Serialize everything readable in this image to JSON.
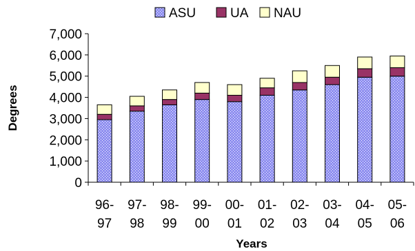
{
  "chart_data": {
    "type": "bar",
    "stacked": true,
    "categories": [
      [
        "96-",
        "97"
      ],
      [
        "97-",
        "98"
      ],
      [
        "98-",
        "99"
      ],
      [
        "99-",
        "00"
      ],
      [
        "00-",
        "01"
      ],
      [
        "01-",
        "02"
      ],
      [
        "02-",
        "03"
      ],
      [
        "03-",
        "04"
      ],
      [
        "04-",
        "05"
      ],
      [
        "05-",
        "06"
      ]
    ],
    "series": [
      {
        "name": "ASU",
        "values": [
          2950,
          3350,
          3650,
          3900,
          3800,
          4100,
          4350,
          4600,
          4950,
          5000
        ]
      },
      {
        "name": "UA",
        "values": [
          250,
          250,
          250,
          300,
          300,
          350,
          350,
          350,
          400,
          400
        ]
      },
      {
        "name": "NAU",
        "values": [
          450,
          450,
          450,
          500,
          500,
          450,
          550,
          550,
          550,
          550
        ]
      }
    ],
    "colors": {
      "ASU": "#9999ff",
      "UA": "#993366",
      "NAU": "#ffffcc"
    },
    "yticks": [
      "0",
      "1,000",
      "2,000",
      "3,000",
      "4,000",
      "5,000",
      "6,000",
      "7,000"
    ],
    "ylim": [
      0,
      7000
    ],
    "xlabel": "Years",
    "ylabel": "Degrees",
    "legend_position": "top",
    "grid": false
  }
}
